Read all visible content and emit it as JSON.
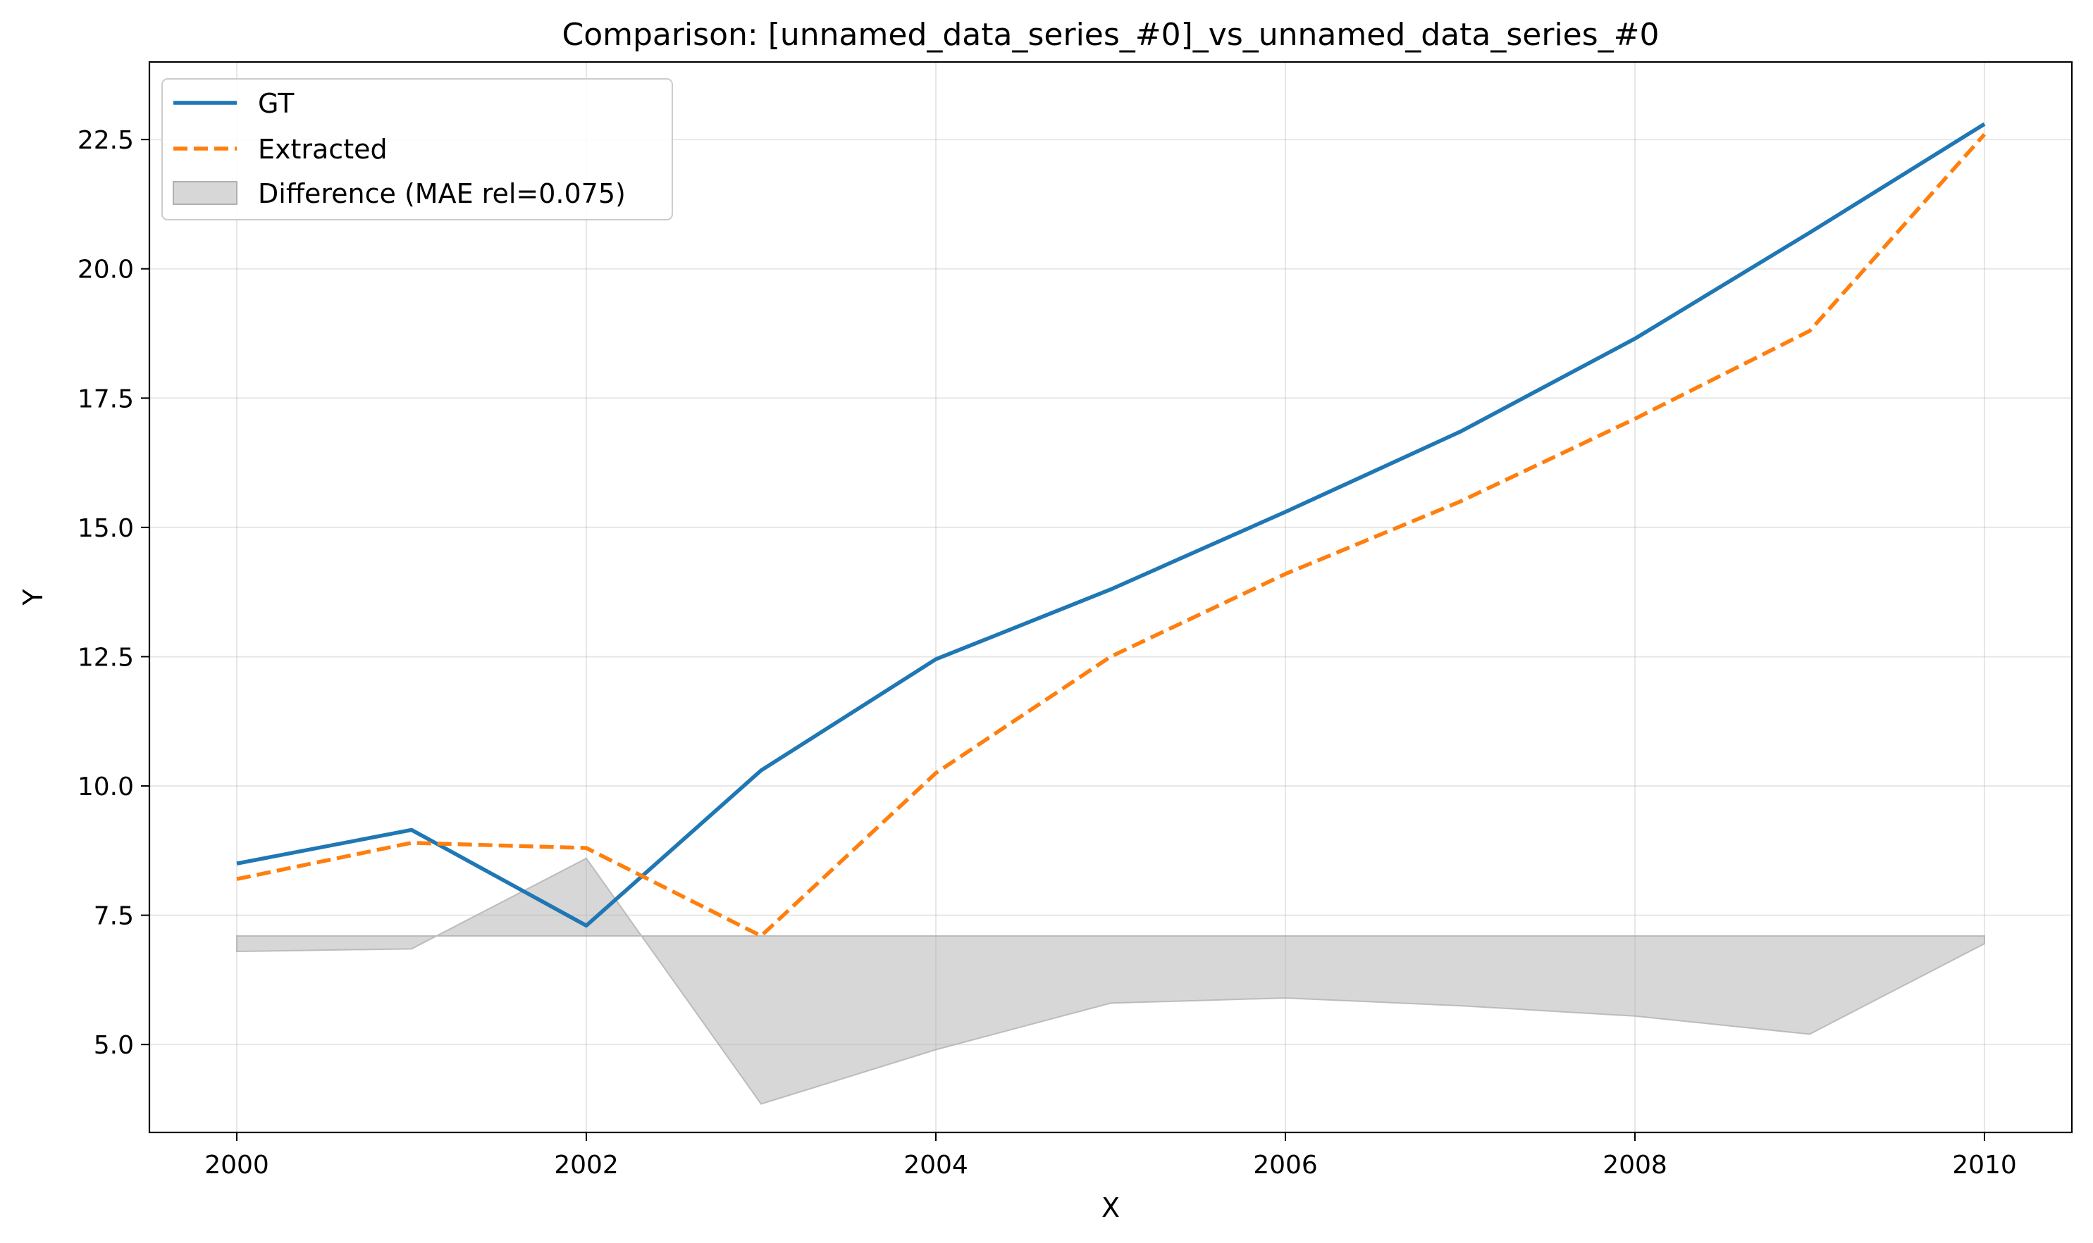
{
  "chart_data": {
    "type": "line",
    "title": "Comparison: [unnamed_data_series_#0]_vs_unnamed_data_series_#0",
    "xlabel": "X",
    "ylabel": "Y",
    "xlim": [
      1999.5,
      2010.5
    ],
    "ylim": [
      3.3,
      24.0
    ],
    "grid": true,
    "legend_position": "top-left",
    "x": [
      2000,
      2001,
      2002,
      2003,
      2004,
      2005,
      2006,
      2007,
      2008,
      2009,
      2010
    ],
    "x_ticks": [
      2000,
      2002,
      2004,
      2006,
      2008,
      2010
    ],
    "x_tick_labels": [
      "2000",
      "2002",
      "2004",
      "2006",
      "2008",
      "2010"
    ],
    "y_ticks": [
      5.0,
      7.5,
      10.0,
      12.5,
      15.0,
      17.5,
      20.0,
      22.5
    ],
    "y_tick_labels": [
      "5.0",
      "7.5",
      "10.0",
      "12.5",
      "15.0",
      "17.5",
      "20.0",
      "22.5"
    ],
    "series": [
      {
        "name": "GT",
        "style": "solid",
        "color": "#1f77b4",
        "values": [
          8.5,
          9.15,
          7.3,
          10.3,
          12.45,
          13.8,
          15.3,
          16.85,
          18.65,
          20.7,
          22.8
        ]
      },
      {
        "name": "Extracted",
        "style": "dashed",
        "color": "#ff7f0e",
        "values": [
          8.2,
          8.9,
          8.8,
          7.1,
          10.25,
          12.5,
          14.1,
          15.5,
          17.1,
          18.8,
          22.6
        ]
      }
    ],
    "difference_band": {
      "name": "Difference (MAE rel=0.075)",
      "color": "#b0b0b0",
      "baseline": 7.1,
      "values": [
        6.8,
        6.85,
        8.6,
        3.85,
        4.9,
        5.8,
        5.9,
        5.75,
        5.55,
        5.2,
        6.95
      ]
    }
  }
}
